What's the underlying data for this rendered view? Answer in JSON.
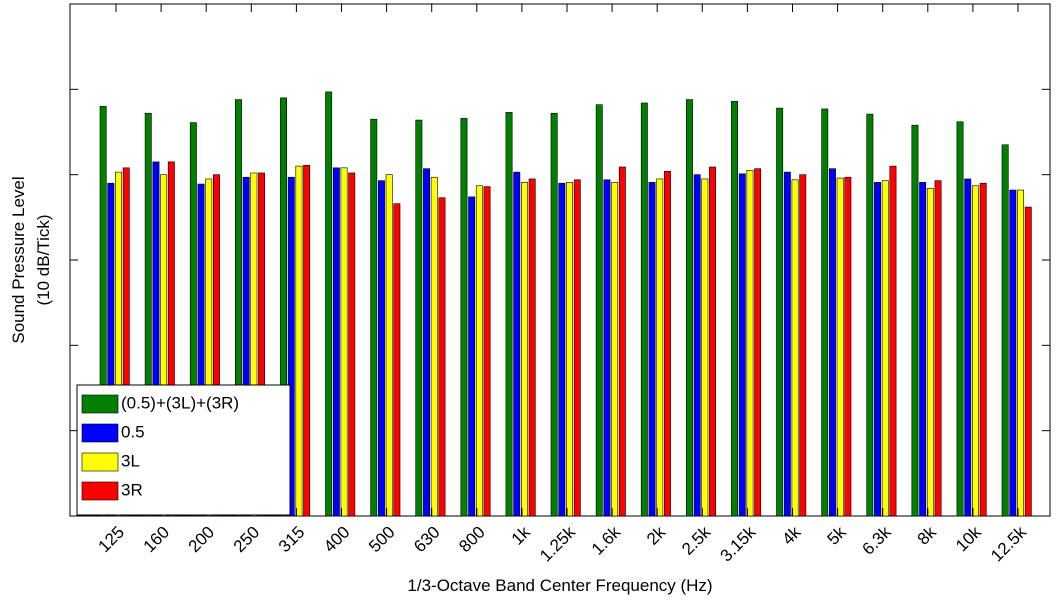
{
  "chart_data": {
    "type": "bar",
    "xlabel": "1/3-Octave Band Center Frequency (Hz)",
    "ylabel": [
      "Sound Pressure Level",
      "(10 dB/Tick)"
    ],
    "categories": [
      "125",
      "160",
      "200",
      "250",
      "315",
      "400",
      "500",
      "630",
      "800",
      "1k",
      "1.25k",
      "1.6k",
      "2k",
      "2.5k",
      "3.15k",
      "4k",
      "5k",
      "6.3k",
      "8k",
      "10k",
      "12.5k"
    ],
    "series": [
      {
        "name": "(0.5)+(3L)+(3R)",
        "color": "#007f00",
        "values": [
          48.0,
          47.2,
          46.1,
          48.8,
          49.0,
          49.7,
          46.5,
          46.4,
          46.6,
          47.3,
          47.2,
          48.2,
          48.4,
          48.8,
          48.6,
          47.8,
          47.7,
          47.1,
          45.8,
          46.2,
          43.5
        ]
      },
      {
        "name": "0.5",
        "color": "#0000ff",
        "values": [
          39.0,
          41.5,
          38.9,
          39.7,
          39.7,
          40.8,
          39.3,
          40.7,
          37.4,
          40.3,
          39.0,
          39.4,
          39.1,
          40.0,
          40.1,
          40.3,
          40.7,
          39.1,
          39.1,
          39.5,
          38.2
        ]
      },
      {
        "name": "3L",
        "color": "#ffff00",
        "values": [
          40.3,
          40.0,
          39.5,
          40.2,
          41.0,
          40.8,
          40.0,
          39.7,
          38.7,
          39.1,
          39.1,
          39.1,
          39.5,
          39.5,
          40.5,
          39.4,
          39.6,
          39.3,
          38.4,
          38.7,
          38.2
        ]
      },
      {
        "name": "3R",
        "color": "#ff0000",
        "values": [
          40.8,
          41.5,
          40.0,
          40.2,
          41.1,
          40.2,
          36.6,
          37.3,
          38.6,
          39.5,
          39.4,
          40.9,
          40.4,
          40.9,
          40.7,
          40.0,
          39.7,
          41.0,
          39.3,
          39.0,
          36.2
        ]
      }
    ],
    "ylim": [
      0,
      60
    ],
    "yticks": [
      0,
      10,
      20,
      30,
      40,
      50,
      60
    ],
    "legend": "lower-left"
  }
}
